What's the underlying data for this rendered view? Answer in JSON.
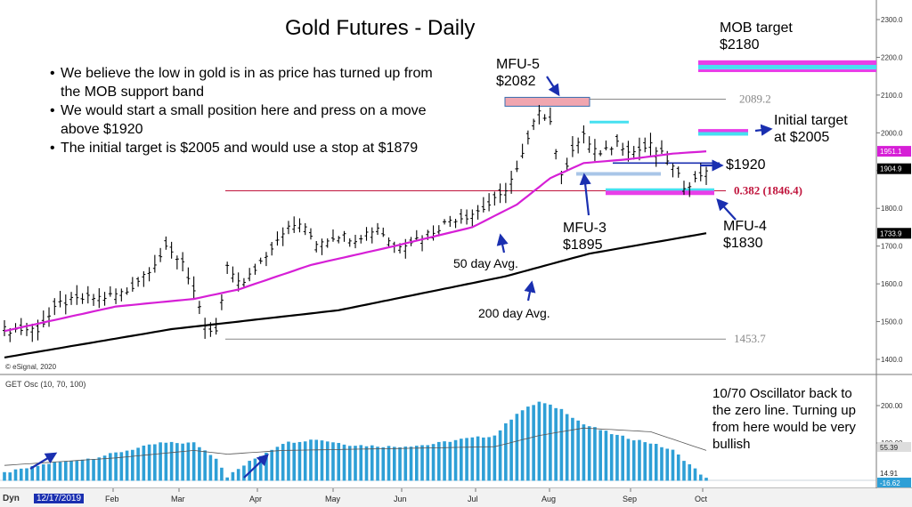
{
  "title": "Gold Futures - Daily",
  "bullets": [
    "We believe the low in gold is in as price has turned up from the MOB support band",
    "We would start a small position here and press on a move above $1920",
    "The initial target is $2005 and would use a stop at $1879"
  ],
  "annotations": {
    "mob_target": "MOB target\n$2180",
    "initial_target": "Initial target\nat $2005",
    "mfu5": "MFU-5\n$2082",
    "mfu3": "MFU-3\n$1895",
    "mfu4": "MFU-4\n$1830",
    "level_1920": "$1920",
    "avg50": "50 day Avg.",
    "avg200": "200 day Avg.",
    "osc_note": "10/70 Oscillator back to the zero line.  Turning up from here would be very bullish"
  },
  "copyright": "© eSignal, 2020",
  "osc_label": "GET Osc (10, 70, 100)",
  "bottom_bar": {
    "mode": "Dyn",
    "date": "12/17/2019"
  },
  "colors": {
    "price": "#000000",
    "ma50": "#d61fd6",
    "ma200": "#000000",
    "osc": "#2e9fd6",
    "fib": "#c0143c",
    "arrow": "#1a2fb0",
    "mob_magenta": "#e83ee8",
    "mob_cyan": "#46e0f0",
    "mob_pink": "#f0a6b0"
  },
  "chart_data": {
    "type": "candlestick",
    "price_axis": {
      "ylim": [
        1380,
        2330
      ],
      "ticks": [
        1400,
        1500,
        1600,
        1700,
        1800,
        1900,
        2000,
        2100,
        2200,
        2300
      ],
      "tick_labels": [
        "1400.0",
        "1500.0",
        "1600.0",
        "1700.0",
        "1800.0",
        "1900.0",
        "2000.0",
        "2100.0",
        "2200.0",
        "2300.0"
      ]
    },
    "x_labels": [
      "Feb",
      "Mar",
      "Apr",
      "May",
      "Jun",
      "Jul",
      "Aug",
      "Sep",
      "Oct"
    ],
    "price_path": [
      [
        0,
        1478
      ],
      [
        6,
        1480
      ],
      [
        10,
        1548
      ],
      [
        14,
        1560
      ],
      [
        18,
        1565
      ],
      [
        22,
        1580
      ],
      [
        26,
        1640
      ],
      [
        29,
        1690
      ],
      [
        32,
        1660
      ],
      [
        34,
        1580
      ],
      [
        36,
        1480
      ],
      [
        38,
        1470
      ],
      [
        40,
        1640
      ],
      [
        43,
        1600
      ],
      [
        46,
        1660
      ],
      [
        50,
        1740
      ],
      [
        53,
        1760
      ],
      [
        56,
        1710
      ],
      [
        60,
        1730
      ],
      [
        63,
        1720
      ],
      [
        67,
        1750
      ],
      [
        70,
        1700
      ],
      [
        74,
        1720
      ],
      [
        77,
        1740
      ],
      [
        80,
        1770
      ],
      [
        83,
        1780
      ],
      [
        86,
        1800
      ],
      [
        89,
        1830
      ],
      [
        92,
        1900
      ],
      [
        94,
        1980
      ],
      [
        96,
        2065
      ],
      [
        98,
        2030
      ],
      [
        100,
        1880
      ],
      [
        102,
        1960
      ],
      [
        104,
        1990
      ],
      [
        107,
        1940
      ],
      [
        110,
        1975
      ],
      [
        113,
        1950
      ],
      [
        116,
        1965
      ],
      [
        119,
        1930
      ],
      [
        122,
        1860
      ],
      [
        124,
        1875
      ],
      [
        126,
        1905
      ]
    ],
    "ma50_path": [
      [
        0,
        1475
      ],
      [
        20,
        1540
      ],
      [
        34,
        1560
      ],
      [
        42,
        1585
      ],
      [
        55,
        1650
      ],
      [
        70,
        1700
      ],
      [
        84,
        1750
      ],
      [
        92,
        1810
      ],
      [
        98,
        1880
      ],
      [
        104,
        1920
      ],
      [
        112,
        1930
      ],
      [
        120,
        1945
      ],
      [
        126,
        1951
      ]
    ],
    "ma200_path": [
      [
        0,
        1405
      ],
      [
        30,
        1480
      ],
      [
        60,
        1530
      ],
      [
        90,
        1620
      ],
      [
        105,
        1680
      ],
      [
        126,
        1734
      ]
    ],
    "last_price": 1904.9,
    "price_tags": [
      {
        "text": "1951.1",
        "value": 1951.1,
        "color": "#d61fd6"
      },
      {
        "text": "1904.9",
        "value": 1904.9,
        "color": "#000000"
      },
      {
        "text": "1733.9",
        "value": 1733.9,
        "color": "#000000"
      }
    ],
    "levels": [
      {
        "label": "2089.2",
        "value": 2089.2,
        "color": "#888888"
      },
      {
        "label": "0.382 (1846.4)",
        "value": 1846.4,
        "color": "#c0143c"
      },
      {
        "label": "1453.7",
        "value": 1453.7,
        "color": "#888888"
      },
      {
        "label": "",
        "value": 1920,
        "color": "#1a2fb0"
      }
    ],
    "osc_axis": {
      "ticks": [
        200,
        100
      ],
      "tick_labels": [
        "200.00",
        "100.00"
      ],
      "tags": [
        "55.39",
        "14.91",
        "-16.62"
      ]
    }
  }
}
